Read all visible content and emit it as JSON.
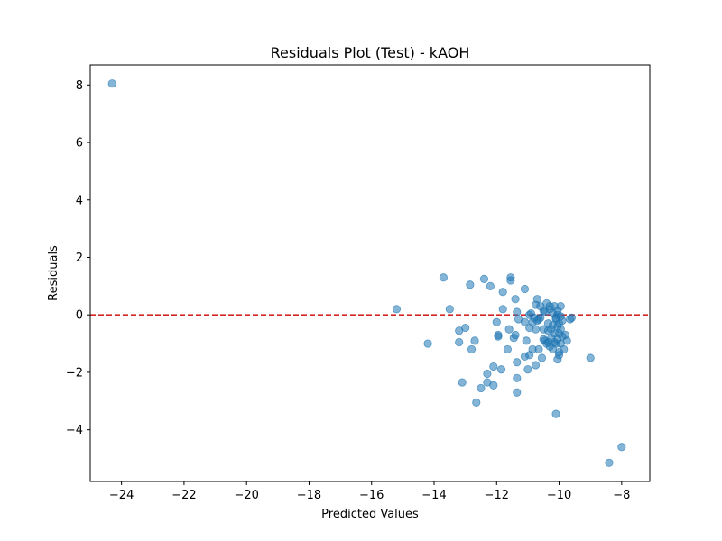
{
  "chart_data": {
    "type": "scatter",
    "title": "Residuals Plot (Test) - kAOH",
    "xlabel": "Predicted Values",
    "ylabel": "Residuals",
    "xlim": [
      -25,
      -7.1
    ],
    "ylim": [
      -5.8,
      8.7
    ],
    "xticks": [
      -24,
      -22,
      -20,
      -18,
      -16,
      -14,
      -12,
      -10,
      -8
    ],
    "yticks": [
      -4,
      -2,
      0,
      2,
      4,
      6,
      8
    ],
    "xtick_labels": [
      "−24",
      "−22",
      "−20",
      "−18",
      "−16",
      "−14",
      "−12",
      "−10",
      "−8"
    ],
    "ytick_labels": [
      "−4",
      "−2",
      "0",
      "2",
      "4",
      "6",
      "8"
    ],
    "grid": false,
    "reference_line": {
      "y": 0,
      "style": "dashed",
      "color": "#d62728"
    },
    "marker_color": "#1f77b4",
    "marker_alpha": 0.55,
    "points": [
      [
        -24.3,
        8.05
      ],
      [
        -15.2,
        0.2
      ],
      [
        -14.2,
        -1.0
      ],
      [
        -13.7,
        1.3
      ],
      [
        -13.5,
        0.2
      ],
      [
        -13.2,
        -0.55
      ],
      [
        -13.2,
        -0.95
      ],
      [
        -13.1,
        -2.35
      ],
      [
        -13.0,
        -0.45
      ],
      [
        -12.85,
        1.05
      ],
      [
        -12.8,
        -1.2
      ],
      [
        -12.7,
        -0.9
      ],
      [
        -12.65,
        -3.05
      ],
      [
        -12.5,
        -2.55
      ],
      [
        -12.4,
        1.25
      ],
      [
        -12.3,
        -2.05
      ],
      [
        -12.3,
        -2.35
      ],
      [
        -12.2,
        1.0
      ],
      [
        -12.1,
        -2.45
      ],
      [
        -12.1,
        -1.8
      ],
      [
        -12.0,
        -0.25
      ],
      [
        -11.95,
        -0.75
      ],
      [
        -11.95,
        -0.7
      ],
      [
        -11.85,
        -1.9
      ],
      [
        -11.8,
        0.8
      ],
      [
        -11.8,
        0.2
      ],
      [
        -11.65,
        -1.2
      ],
      [
        -11.6,
        -0.5
      ],
      [
        -11.55,
        1.3
      ],
      [
        -11.55,
        1.2
      ],
      [
        -11.45,
        -0.8
      ],
      [
        -11.4,
        -0.7
      ],
      [
        -11.4,
        0.55
      ],
      [
        -11.35,
        0.1
      ],
      [
        -11.35,
        -1.65
      ],
      [
        -11.35,
        -2.2
      ],
      [
        -11.35,
        -2.7
      ],
      [
        -11.3,
        -0.15
      ],
      [
        -11.1,
        0.9
      ],
      [
        -11.05,
        -0.9
      ],
      [
        -11.0,
        -1.9
      ],
      [
        -10.95,
        -1.4
      ],
      [
        -10.95,
        0.0
      ],
      [
        -10.9,
        0.05
      ],
      [
        -10.85,
        -1.2
      ],
      [
        -10.8,
        -0.1
      ],
      [
        -10.75,
        0.35
      ],
      [
        -10.75,
        -1.75
      ],
      [
        -10.7,
        0.55
      ],
      [
        -10.7,
        -0.2
      ],
      [
        -10.65,
        -1.2
      ],
      [
        -10.6,
        0.3
      ],
      [
        -10.6,
        -0.1
      ],
      [
        -10.55,
        -1.5
      ],
      [
        -10.5,
        -0.5
      ],
      [
        -10.5,
        -0.85
      ],
      [
        -10.45,
        0.1
      ],
      [
        -10.4,
        0.4
      ],
      [
        -10.35,
        -0.55
      ],
      [
        -10.35,
        -0.95
      ],
      [
        -10.3,
        0.2
      ],
      [
        -10.3,
        0.3
      ],
      [
        -10.3,
        -1.1
      ],
      [
        -10.25,
        -0.5
      ],
      [
        -10.25,
        -0.8
      ],
      [
        -10.2,
        0.05
      ],
      [
        -10.2,
        -0.35
      ],
      [
        -10.15,
        0.3
      ],
      [
        -10.15,
        -0.65
      ],
      [
        -10.15,
        -0.95
      ],
      [
        -10.1,
        -0.15
      ],
      [
        -10.1,
        -1.0
      ],
      [
        -10.1,
        -3.45
      ],
      [
        -10.05,
        0.15
      ],
      [
        -10.05,
        -0.4
      ],
      [
        -10.05,
        -0.85
      ],
      [
        -10.0,
        -0.3
      ],
      [
        -10.0,
        -0.65
      ],
      [
        -10.0,
        -1.3
      ],
      [
        -9.95,
        0.3
      ],
      [
        -9.95,
        -0.05
      ],
      [
        -9.95,
        -1.0
      ],
      [
        -9.9,
        -0.2
      ],
      [
        -9.9,
        -0.75
      ],
      [
        -9.85,
        -1.2
      ],
      [
        -9.8,
        -0.7
      ],
      [
        -9.75,
        -0.9
      ],
      [
        -9.65,
        -0.15
      ],
      [
        -10.05,
        -1.55
      ],
      [
        -10.5,
        0.15
      ],
      [
        -10.65,
        -0.15
      ],
      [
        -10.85,
        -0.25
      ],
      [
        -10.4,
        -1.0
      ],
      [
        -10.2,
        -1.2
      ],
      [
        -9.6,
        -0.1
      ],
      [
        -9.0,
        -1.5
      ],
      [
        -8.4,
        -5.15
      ],
      [
        -8.0,
        -4.6
      ],
      [
        -10.1,
        -0.1
      ],
      [
        -10.0,
        -1.4
      ],
      [
        -10.75,
        -0.5
      ],
      [
        -10.95,
        -0.45
      ],
      [
        -10.45,
        -0.9
      ],
      [
        -9.95,
        -0.5
      ],
      [
        -10.05,
        0.0
      ],
      [
        -11.1,
        -0.25
      ],
      [
        -11.1,
        -1.45
      ],
      [
        -10.35,
        -0.3
      ]
    ]
  }
}
